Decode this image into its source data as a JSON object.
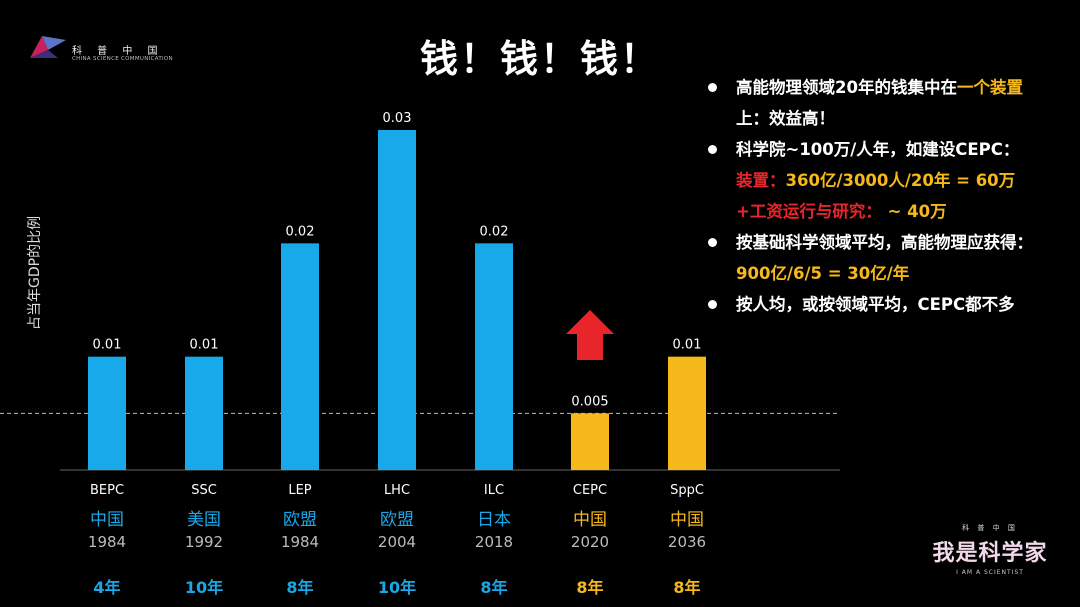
{
  "logo_top_left": {
    "cn": "科 普 中 国",
    "en": "CHINA SCIENCE COMMUNICATION"
  },
  "title": "钱！钱！钱！",
  "colors": {
    "blue": "#18a9eb",
    "yellow": "#f6b81a",
    "red": "#e8252a",
    "text_blue": "#1aa7e8"
  },
  "chart_data": {
    "type": "bar",
    "title": "",
    "xlabel": "",
    "ylabel": "占当年GDP的比例",
    "ylim": [
      0,
      0.03
    ],
    "reference_line": 0.005,
    "categories": [
      "BEPC",
      "SSC",
      "LEP",
      "LHC",
      "ILC",
      "CEPC",
      "SppC"
    ],
    "values": [
      0.01,
      0.01,
      0.02,
      0.03,
      0.02,
      0.005,
      0.01
    ],
    "data_labels": [
      "0.01",
      "0.01",
      "0.02",
      "0.03",
      "0.02",
      "0.005",
      "0.01"
    ],
    "bar_colors": [
      "blue",
      "blue",
      "blue",
      "blue",
      "blue",
      "yellow",
      "yellow"
    ],
    "regions": [
      "中国",
      "美国",
      "欧盟",
      "欧盟",
      "日本",
      "中国",
      "中国"
    ],
    "years": [
      "1984",
      "1992",
      "1984",
      "2004",
      "2018",
      "2020",
      "2036"
    ],
    "durations": [
      "4年",
      "10年",
      "8年",
      "10年",
      "8年",
      "8年",
      "8年"
    ],
    "annotation": {
      "shape": "up-arrow",
      "at_category": "CEPC",
      "color": "red"
    }
  },
  "bullets": [
    {
      "parts": [
        {
          "text": "高能物理领域20年的钱集中在"
        },
        {
          "text": "一个装置",
          "color": "yellow"
        }
      ]
    },
    {
      "sub": true,
      "parts": [
        {
          "text": "上：效益高！"
        }
      ]
    },
    {
      "parts": [
        {
          "text": "科学院~100万/人年，如建设CEPC："
        }
      ]
    },
    {
      "sub": true,
      "parts": [
        {
          "text": "装置：",
          "color": "red"
        },
        {
          "text": "360亿/3000人/20年 = 60万",
          "color": "yellow"
        }
      ]
    },
    {
      "sub": true,
      "parts": [
        {
          "text": "+工资运行与研究：",
          "color": "red"
        },
        {
          "text": " ~ 40万",
          "color": "yellow"
        }
      ]
    },
    {
      "parts": [
        {
          "text": "按基础科学领域平均，高能物理应获得："
        }
      ]
    },
    {
      "sub": true,
      "parts": [
        {
          "text": "900亿/6/5 = 30亿/年",
          "color": "yellow"
        }
      ]
    },
    {
      "parts": [
        {
          "text": "按人均，或按领域平均，CEPC都不多"
        }
      ]
    }
  ],
  "logo_bottom_right": {
    "small": "科 普 中 国",
    "big": "我是科学家",
    "en": "I AM A SCIENTIST"
  }
}
